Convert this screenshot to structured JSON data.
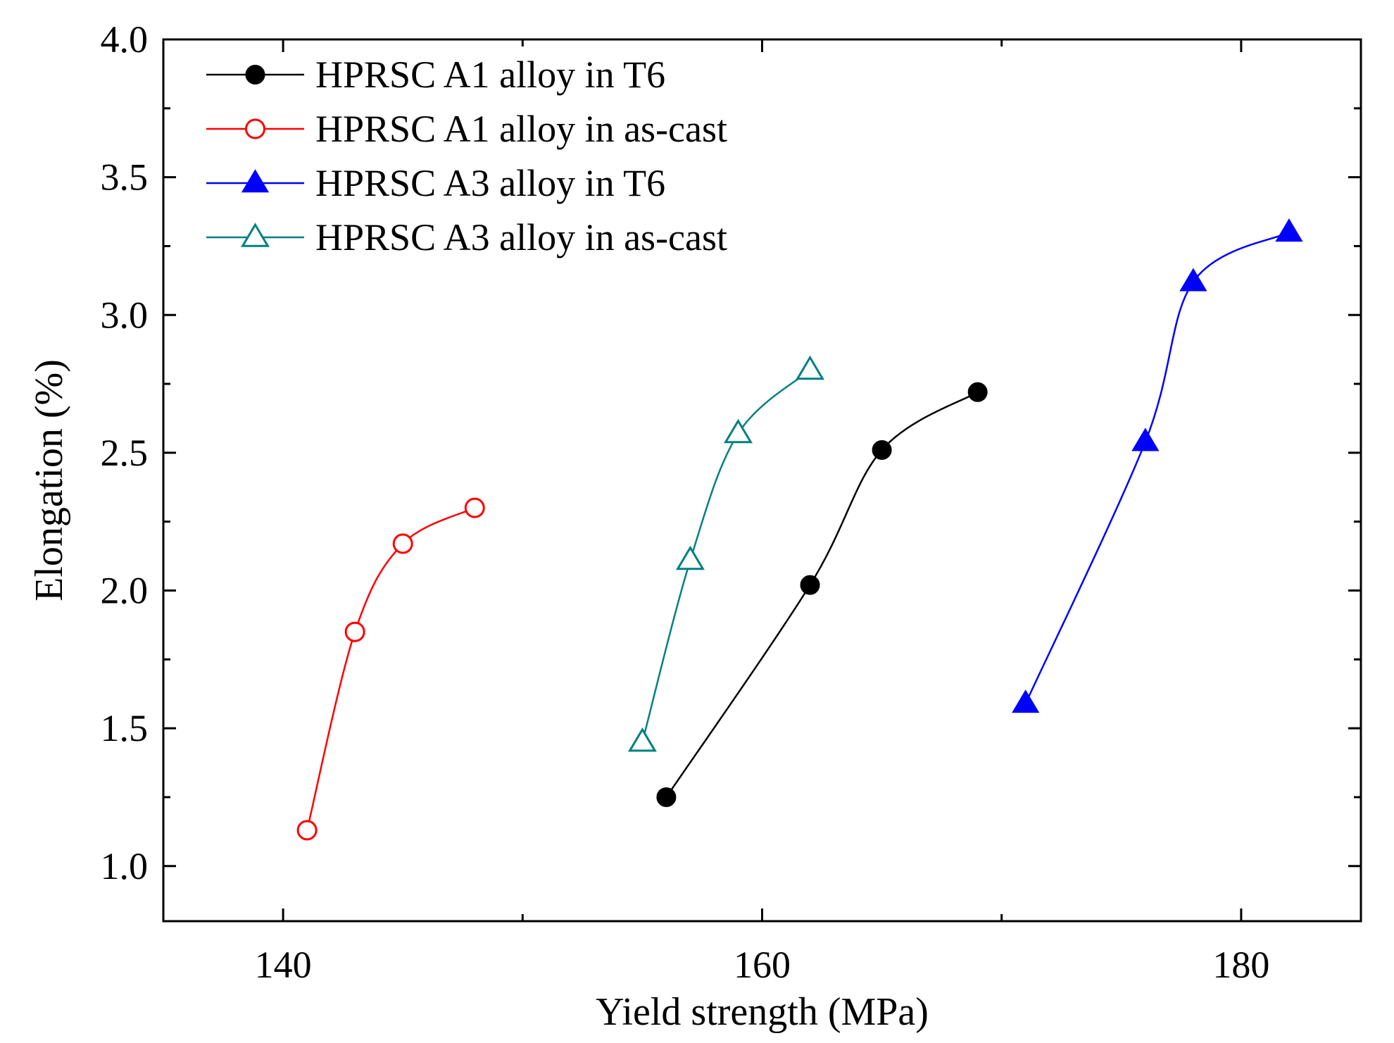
{
  "chart_data": {
    "type": "scatter",
    "xlabel": "Yield strength (MPa)",
    "ylabel": "Elongation (%)",
    "xlim": [
      135,
      185
    ],
    "ylim": [
      0.8,
      4.0
    ],
    "x_ticks": [
      140,
      160,
      180
    ],
    "x_minor_ticks": [
      150,
      170
    ],
    "y_ticks": [
      "1.0",
      "1.5",
      "2.0",
      "2.5",
      "3.0",
      "3.5",
      "4.0"
    ],
    "legend_position": "top-left",
    "grid": false,
    "series": [
      {
        "name": "HPRSC A1 alloy in T6",
        "marker": "circle",
        "filled": true,
        "color": "#000000",
        "x": [
          156.0,
          162.0,
          165.0,
          169.0
        ],
        "y": [
          1.25,
          2.02,
          2.51,
          2.72
        ]
      },
      {
        "name": "HPRSC A1 alloy in as-cast",
        "marker": "circle",
        "filled": false,
        "color": "#ff0000",
        "x": [
          141.0,
          143.0,
          145.0,
          148.0
        ],
        "y": [
          1.13,
          1.85,
          2.17,
          2.3
        ]
      },
      {
        "name": "HPRSC A3 alloy in T6",
        "marker": "triangle",
        "filled": true,
        "color": "#0000ff",
        "x": [
          171.0,
          176.0,
          178.0,
          182.0
        ],
        "y": [
          1.59,
          2.54,
          3.12,
          3.3
        ]
      },
      {
        "name": "HPRSC A3 alloy in as-cast",
        "marker": "triangle",
        "filled": false,
        "color": "#008080",
        "x": [
          155.0,
          157.0,
          159.0,
          162.0
        ],
        "y": [
          1.45,
          2.11,
          2.57,
          2.8
        ]
      }
    ]
  }
}
